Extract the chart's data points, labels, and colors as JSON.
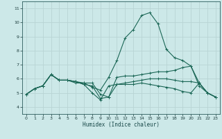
{
  "xlabel": "Humidex (Indice chaleur)",
  "xlim": [
    -0.5,
    23.5
  ],
  "ylim": [
    3.5,
    11.5
  ],
  "xticks": [
    0,
    1,
    2,
    3,
    4,
    5,
    6,
    7,
    8,
    9,
    10,
    11,
    12,
    13,
    14,
    15,
    16,
    17,
    18,
    19,
    20,
    21,
    22,
    23
  ],
  "yticks": [
    4,
    5,
    6,
    7,
    8,
    9,
    10,
    11
  ],
  "bg_color": "#cce8e8",
  "grid_color": "#b8d4d4",
  "line_color": "#1a6655",
  "lines": [
    [
      0,
      4.9,
      1,
      5.3,
      2,
      5.5,
      3,
      6.3,
      4,
      5.9,
      5,
      5.9,
      6,
      5.8,
      7,
      5.6,
      8,
      5.5,
      9,
      4.6,
      10,
      4.7,
      11,
      6.1,
      12,
      6.2,
      13,
      6.2,
      14,
      6.3,
      15,
      6.4,
      16,
      6.5,
      17,
      6.5,
      18,
      6.6,
      19,
      6.8,
      20,
      6.9,
      21,
      5.5,
      22,
      5.0,
      23,
      4.7
    ],
    [
      0,
      4.9,
      1,
      5.3,
      2,
      5.5,
      3,
      6.3,
      4,
      5.9,
      5,
      5.9,
      6,
      5.8,
      7,
      5.7,
      8,
      5.4,
      9,
      5.2,
      10,
      6.1,
      11,
      7.3,
      12,
      8.9,
      13,
      9.5,
      14,
      10.5,
      15,
      10.7,
      16,
      9.9,
      17,
      8.1,
      18,
      7.5,
      19,
      7.3,
      20,
      6.9,
      21,
      5.7,
      22,
      5.0,
      23,
      4.7
    ],
    [
      0,
      4.9,
      1,
      5.3,
      2,
      5.5,
      3,
      6.3,
      4,
      5.9,
      5,
      5.9,
      6,
      5.8,
      7,
      5.6,
      8,
      5.0,
      9,
      4.5,
      10,
      5.5,
      11,
      5.6,
      12,
      5.6,
      13,
      5.6,
      14,
      5.7,
      15,
      5.6,
      16,
      5.5,
      17,
      5.4,
      18,
      5.3,
      19,
      5.1,
      20,
      5.0,
      21,
      5.7,
      22,
      5.0,
      23,
      4.7
    ],
    [
      0,
      4.9,
      1,
      5.3,
      2,
      5.5,
      3,
      6.3,
      4,
      5.9,
      5,
      5.9,
      6,
      5.7,
      7,
      5.7,
      8,
      5.7,
      9,
      4.9,
      10,
      4.7,
      11,
      5.6,
      12,
      5.7,
      13,
      5.8,
      14,
      5.9,
      15,
      6.0,
      16,
      6.0,
      17,
      6.0,
      18,
      5.9,
      19,
      5.8,
      20,
      5.8,
      21,
      5.7,
      22,
      5.0,
      23,
      4.7
    ]
  ]
}
